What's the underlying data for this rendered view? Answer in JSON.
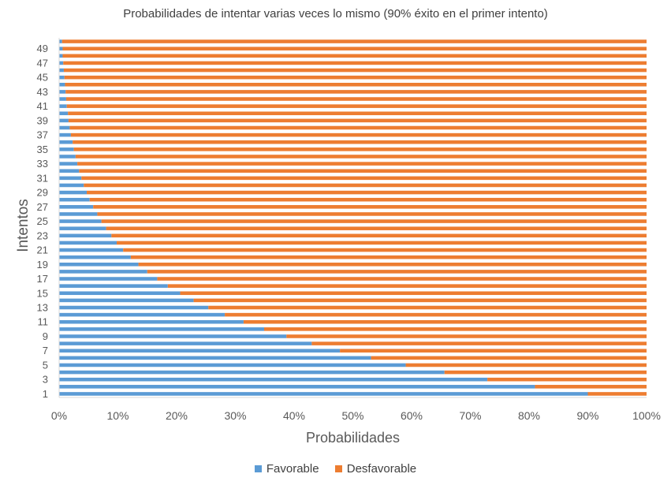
{
  "chart_data": {
    "type": "bar",
    "orientation": "horizontal",
    "stacked": "percent",
    "title": "Probabilidades de intentar varias veces lo mismo (90% éxito en el primer intento)",
    "xlabel": "Probabilidades",
    "ylabel": "Intentos",
    "xlim": [
      0,
      100
    ],
    "x_ticks": [
      "0%",
      "10%",
      "20%",
      "30%",
      "40%",
      "50%",
      "60%",
      "70%",
      "80%",
      "90%",
      "100%"
    ],
    "categories": [
      1,
      2,
      3,
      4,
      5,
      6,
      7,
      8,
      9,
      10,
      11,
      12,
      13,
      14,
      15,
      16,
      17,
      18,
      19,
      20,
      21,
      22,
      23,
      24,
      25,
      26,
      27,
      28,
      29,
      30,
      31,
      32,
      33,
      34,
      35,
      36,
      37,
      38,
      39,
      40,
      41,
      42,
      43,
      44,
      45,
      46,
      47,
      48,
      49,
      50
    ],
    "y_tick_labels_shown": [
      "1",
      "3",
      "5",
      "7",
      "9",
      "11",
      "13",
      "15",
      "17",
      "19",
      "21",
      "23",
      "25",
      "27",
      "29",
      "31",
      "33",
      "35",
      "37",
      "39",
      "41",
      "43",
      "45",
      "47",
      "49"
    ],
    "series": [
      {
        "name": "Favorable",
        "color": "#5B9BD5",
        "values": [
          90,
          81,
          72.9,
          65.6,
          59.0,
          53.1,
          47.8,
          43.0,
          38.7,
          34.9,
          31.4,
          28.2,
          25.4,
          22.9,
          20.6,
          18.5,
          16.7,
          15.0,
          13.5,
          12.2,
          10.9,
          9.8,
          8.9,
          8.0,
          7.2,
          6.5,
          5.8,
          5.2,
          4.7,
          4.2,
          3.8,
          3.4,
          3.1,
          2.8,
          2.5,
          2.3,
          2.0,
          1.8,
          1.6,
          1.5,
          1.3,
          1.2,
          1.1,
          1.0,
          0.9,
          0.8,
          0.7,
          0.6,
          0.6,
          0.5
        ]
      },
      {
        "name": "Desfavorable",
        "color": "#ED7D31",
        "values": [
          10,
          19,
          27.1,
          34.4,
          41.0,
          46.9,
          52.2,
          57.0,
          61.3,
          65.1,
          68.6,
          71.8,
          74.6,
          77.1,
          79.4,
          81.5,
          83.3,
          85.0,
          86.5,
          87.8,
          89.1,
          90.2,
          91.1,
          92.0,
          92.8,
          93.5,
          94.2,
          94.8,
          95.3,
          95.8,
          96.2,
          96.6,
          96.9,
          97.2,
          97.5,
          97.7,
          98.0,
          98.2,
          98.4,
          98.5,
          98.7,
          98.8,
          98.9,
          99.0,
          99.1,
          99.2,
          99.3,
          99.4,
          99.4,
          99.5
        ]
      }
    ],
    "grid": false,
    "legend_position": "bottom",
    "text_color": "#595959"
  }
}
